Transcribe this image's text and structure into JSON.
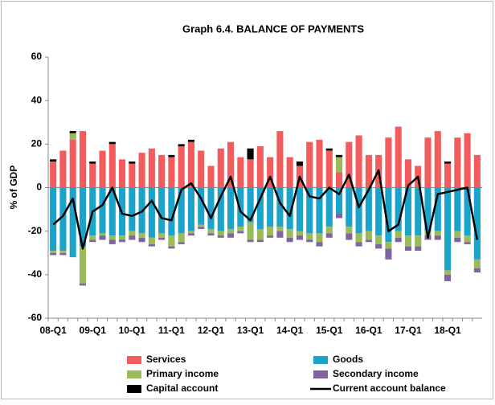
{
  "chart_data": {
    "type": "bar",
    "stacked": true,
    "title": "Graph 6.4. BALANCE OF PAYMENTS",
    "ylabel": "% of GDP",
    "categories": [
      "08-Q1",
      null,
      null,
      null,
      "09-Q1",
      null,
      null,
      null,
      "10-Q1",
      null,
      null,
      null,
      "11-Q1",
      null,
      null,
      null,
      "12-Q1",
      null,
      null,
      null,
      "13-Q1",
      null,
      null,
      null,
      "14-Q1",
      null,
      null,
      null,
      "15-Q1",
      null,
      null,
      null,
      "16-Q1",
      null,
      null,
      null,
      "17-Q1",
      null,
      null,
      null,
      "18-Q1",
      null,
      null,
      null
    ],
    "series": [
      {
        "name": "Services",
        "color": "#f25c5c",
        "values": [
          12,
          17,
          22,
          26,
          11,
          17,
          20,
          13,
          11,
          16,
          18,
          15,
          14,
          19,
          21,
          17,
          10,
          18,
          21,
          14,
          13,
          19,
          14,
          26,
          14,
          10,
          21,
          22,
          17,
          7,
          21,
          24,
          15,
          15,
          23,
          28,
          13,
          10,
          23,
          26,
          11,
          23,
          25,
          15
        ]
      },
      {
        "name": "Goods",
        "color": "#1ca3c9",
        "values": [
          -29,
          -29,
          -32,
          -27,
          -22,
          -21,
          -22,
          -22,
          -20,
          -21,
          -23,
          -21,
          -22,
          -21,
          -20,
          -17,
          -19,
          -20,
          -19,
          -18,
          -16,
          -19,
          -18,
          -18,
          -19,
          -20,
          -21,
          -21,
          -18,
          -12,
          -18,
          -21,
          -20,
          -22,
          -25,
          -20,
          -22,
          -22,
          -20,
          -20,
          -38,
          -20,
          -22,
          -33
        ]
      },
      {
        "name": "Primary income",
        "color": "#9bbb59",
        "values": [
          -1,
          -1,
          3,
          -17,
          -2,
          -1,
          -2,
          -2,
          -2,
          -2,
          -3,
          -2,
          -5,
          -4,
          -1,
          -1,
          -2,
          -2,
          -2,
          -2,
          -8,
          -5,
          -4,
          -2,
          -4,
          -2,
          -3,
          -4,
          -3,
          7,
          -3,
          -4,
          -4,
          -4,
          -3,
          -3,
          -5,
          -5,
          -2,
          -2,
          -2,
          -3,
          -3,
          -4
        ]
      },
      {
        "name": "Secondary income",
        "color": "#8064a2",
        "values": [
          -1,
          -1,
          0,
          -1,
          -1,
          -2,
          -2,
          -1,
          -2,
          -2,
          -1,
          -1,
          -1,
          -1,
          -1,
          -1,
          -1,
          -1,
          -2,
          -1,
          -1,
          -1,
          -1,
          -3,
          -2,
          -2,
          -1,
          -2,
          -2,
          -2,
          -3,
          -2,
          -1,
          -2,
          -5,
          -2,
          -2,
          -2,
          -2,
          -2,
          -3,
          -2,
          -1,
          -2
        ]
      },
      {
        "name": "Capital account",
        "color": "#000000",
        "values": [
          1,
          0,
          1,
          0,
          1,
          0,
          1,
          0,
          1,
          0,
          0,
          0,
          1,
          1,
          1,
          0,
          0,
          0,
          0,
          0,
          5,
          0,
          0,
          0,
          0,
          2,
          0,
          0,
          1,
          1,
          0,
          0,
          0,
          0,
          0,
          0,
          0,
          0,
          0,
          0,
          1,
          0,
          0,
          0
        ]
      },
      {
        "name": "Current account balance",
        "color": "#000000",
        "type": "line",
        "values": [
          -17,
          -13,
          -5,
          -28,
          -11,
          -8,
          0,
          -12,
          -13,
          -11,
          -6,
          -14,
          -15,
          -1,
          2,
          -5,
          -14,
          -4,
          5,
          -11,
          -15,
          -5,
          5,
          -7,
          -13,
          5,
          -4,
          -5,
          0,
          -3,
          6,
          -9,
          -1,
          8,
          -20,
          -17,
          1,
          5,
          -23,
          -3,
          -2,
          -1,
          0,
          -24
        ]
      }
    ],
    "ylim": [
      -60,
      60
    ],
    "yticks": [
      -60,
      -40,
      -20,
      0,
      20,
      40,
      60
    ]
  }
}
